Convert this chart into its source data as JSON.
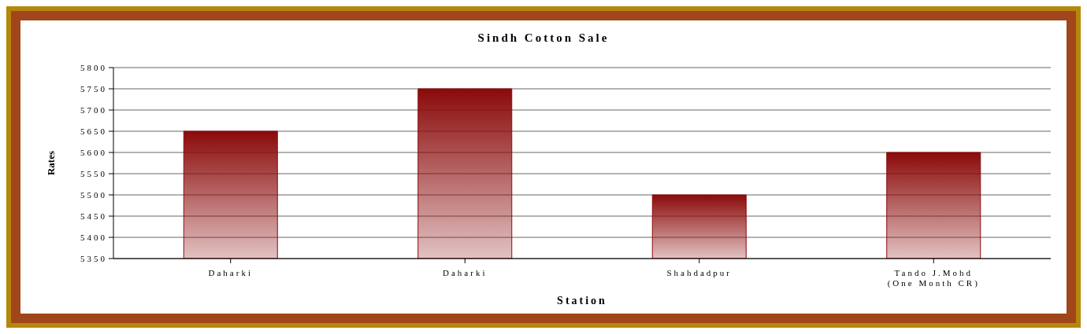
{
  "chart_data": {
    "type": "bar",
    "title": "Sindh Cotton Sale",
    "xlabel": "Station",
    "ylabel": "Rates",
    "categories": [
      "Daharki",
      "Daharki",
      "Shahdadpur",
      "Tando J.Mohd (One Month CR)"
    ],
    "values": [
      5650,
      5750,
      5500,
      5600
    ],
    "color": "#8b0a0a",
    "ylim": [
      5350,
      5800
    ],
    "yticks": [
      5350,
      5400,
      5450,
      5500,
      5550,
      5600,
      5650,
      5700,
      5750,
      5800
    ],
    "grid": "y",
    "legend": false
  }
}
